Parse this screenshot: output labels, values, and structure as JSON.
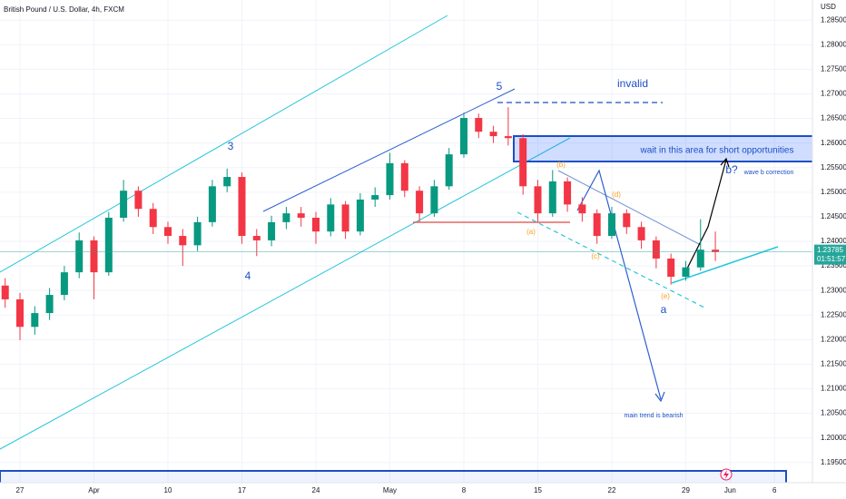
{
  "chart_data": {
    "type": "candlestick",
    "title": "British Pound / U.S. Dollar, 4h, FXCM",
    "currency": "USD",
    "x": [
      -1,
      0,
      1,
      2,
      3,
      4,
      5,
      6,
      7,
      8,
      9,
      10,
      11,
      12,
      13,
      14,
      15,
      16,
      17,
      18,
      19,
      20,
      21,
      22,
      23,
      24,
      25,
      26,
      27,
      28,
      29,
      30,
      31,
      32,
      33,
      34,
      35,
      36,
      37,
      38,
      39,
      40,
      41,
      42,
      43,
      44,
      45,
      46,
      47
    ],
    "ohlc": [
      [
        1.231,
        1.2325,
        1.2265,
        1.2282
      ],
      [
        1.2282,
        1.2295,
        1.2199,
        1.2226
      ],
      [
        1.2226,
        1.2268,
        1.221,
        1.2254
      ],
      [
        1.2254,
        1.2305,
        1.224,
        1.2291
      ],
      [
        1.2291,
        1.235,
        1.228,
        1.2337
      ],
      [
        1.2337,
        1.2418,
        1.2325,
        1.2402
      ],
      [
        1.2402,
        1.241,
        1.2282,
        1.2337
      ],
      [
        1.2337,
        1.246,
        1.233,
        1.2448
      ],
      [
        1.2448,
        1.2525,
        1.244,
        1.2503
      ],
      [
        1.2503,
        1.2512,
        1.245,
        1.2466
      ],
      [
        1.2466,
        1.2478,
        1.2415,
        1.2429
      ],
      [
        1.2429,
        1.244,
        1.2395,
        1.2411
      ],
      [
        1.2411,
        1.2425,
        1.235,
        1.2392
      ],
      [
        1.2392,
        1.245,
        1.238,
        1.2439
      ],
      [
        1.2439,
        1.2525,
        1.243,
        1.2512
      ],
      [
        1.2512,
        1.2548,
        1.25,
        1.2531
      ],
      [
        1.2531,
        1.254,
        1.2395,
        1.2411
      ],
      [
        1.2411,
        1.2425,
        1.237,
        1.2402
      ],
      [
        1.2402,
        1.2452,
        1.239,
        1.2439
      ],
      [
        1.2439,
        1.247,
        1.2425,
        1.2457
      ],
      [
        1.2457,
        1.247,
        1.243,
        1.2448
      ],
      [
        1.2448,
        1.246,
        1.2395,
        1.242
      ],
      [
        1.242,
        1.2488,
        1.241,
        1.2475
      ],
      [
        1.2475,
        1.2482,
        1.2405,
        1.242
      ],
      [
        1.242,
        1.2498,
        1.2412,
        1.2485
      ],
      [
        1.2485,
        1.251,
        1.247,
        1.2494
      ],
      [
        1.2494,
        1.258,
        1.2485,
        1.2559
      ],
      [
        1.2559,
        1.2565,
        1.249,
        1.2503
      ],
      [
        1.2503,
        1.2512,
        1.244,
        1.2457
      ],
      [
        1.2457,
        1.2525,
        1.245,
        1.2512
      ],
      [
        1.2512,
        1.259,
        1.2505,
        1.2577
      ],
      [
        1.2577,
        1.2662,
        1.257,
        1.2651
      ],
      [
        1.2651,
        1.266,
        1.261,
        1.2623
      ],
      [
        1.2623,
        1.2635,
        1.26,
        1.2614
      ],
      [
        1.2614,
        1.2673,
        1.2595,
        1.261
      ],
      [
        1.261,
        1.2618,
        1.2495,
        1.2512
      ],
      [
        1.2512,
        1.2525,
        1.244,
        1.2457
      ],
      [
        1.2457,
        1.2545,
        1.245,
        1.2522
      ],
      [
        1.2522,
        1.253,
        1.246,
        1.2475
      ],
      [
        1.2475,
        1.249,
        1.244,
        1.2457
      ],
      [
        1.2457,
        1.2465,
        1.2395,
        1.2411
      ],
      [
        1.2411,
        1.247,
        1.2405,
        1.2457
      ],
      [
        1.2457,
        1.2465,
        1.2415,
        1.2429
      ],
      [
        1.2429,
        1.244,
        1.2385,
        1.2402
      ],
      [
        1.2402,
        1.241,
        1.2345,
        1.2365
      ],
      [
        1.2365,
        1.2375,
        1.2312,
        1.2328
      ],
      [
        1.2328,
        1.236,
        1.232,
        1.2347
      ],
      [
        1.2347,
        1.2445,
        1.234,
        1.2383
      ],
      [
        1.2383,
        1.242,
        1.236,
        1.23785
      ]
    ],
    "up_color": "#089981",
    "down_color": "#f23645",
    "last_price": 1.23785,
    "countdown": "01:51:57",
    "price_line_color": "#26a69a",
    "xlim": [
      -1.35,
      53.56
    ],
    "xticks": [
      {
        "value": 0,
        "label": "27"
      },
      {
        "value": 5,
        "label": "Apr"
      },
      {
        "value": 10,
        "label": "10"
      },
      {
        "value": 15,
        "label": "17"
      },
      {
        "value": 20,
        "label": "24"
      },
      {
        "value": 25,
        "label": "May"
      },
      {
        "value": 30,
        "label": "8"
      },
      {
        "value": 35,
        "label": "15"
      },
      {
        "value": 40,
        "label": "22"
      },
      {
        "value": 45,
        "label": "29"
      },
      {
        "value": 48,
        "label": "Jun"
      },
      {
        "value": 51,
        "label": "6"
      }
    ],
    "ylim": [
      1.1909,
      1.2891
    ],
    "yticks": [
      {
        "value": 1.285,
        "label": "1.28500"
      },
      {
        "value": 1.28,
        "label": "1.28000"
      },
      {
        "value": 1.275,
        "label": "1.27500"
      },
      {
        "value": 1.27,
        "label": "1.27000"
      },
      {
        "value": 1.265,
        "label": "1.26500"
      },
      {
        "value": 1.26,
        "label": "1.26000"
      },
      {
        "value": 1.255,
        "label": "1.25500"
      },
      {
        "value": 1.25,
        "label": "1.25000"
      },
      {
        "value": 1.245,
        "label": "1.24500"
      },
      {
        "value": 1.24,
        "label": "1.24000"
      },
      {
        "value": 1.235,
        "label": "1.23500"
      },
      {
        "value": 1.23,
        "label": "1.23000"
      },
      {
        "value": 1.225,
        "label": "1.22500"
      },
      {
        "value": 1.22,
        "label": "1.22000"
      },
      {
        "value": 1.215,
        "label": "1.21500"
      },
      {
        "value": 1.21,
        "label": "1.21000"
      },
      {
        "value": 1.205,
        "label": "1.20500"
      },
      {
        "value": 1.2,
        "label": "1.20000"
      },
      {
        "value": 1.195,
        "label": "1.19500"
      }
    ],
    "grid": true,
    "annotations": [
      "5",
      "3",
      "4",
      "invalid",
      "wait in this area for short opportunities",
      "b?",
      "wave b correction",
      "(a)",
      "(b)",
      "(c)",
      "(d)",
      "(e)",
      "a",
      "main trend is bearish"
    ]
  }
}
